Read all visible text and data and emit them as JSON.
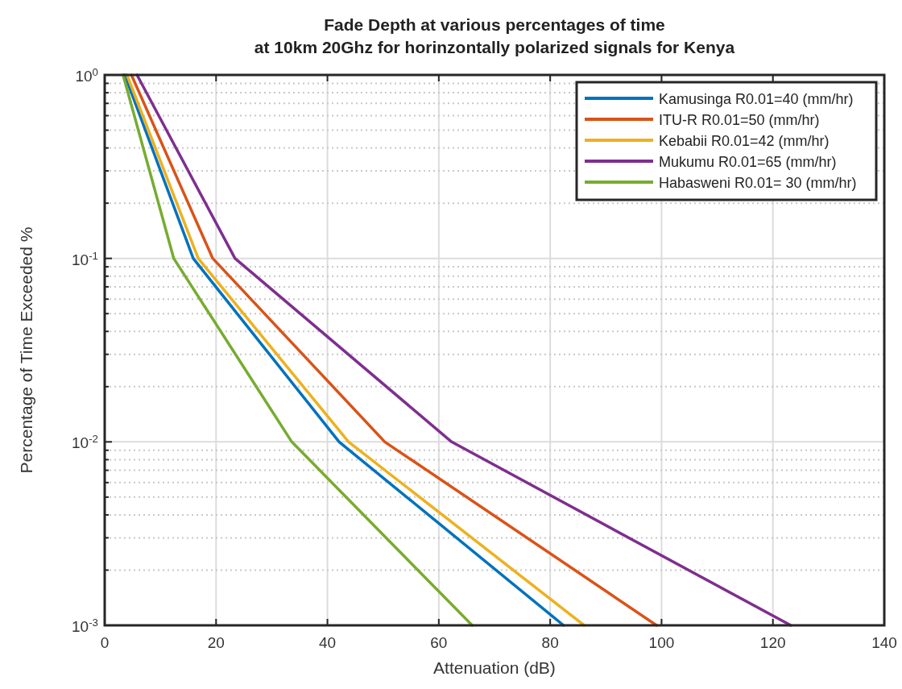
{
  "chart_data": {
    "type": "line",
    "title": "Fade Depth at various percentages of time\nat 10km 20Ghz for horinzontally polarized signals for Kenya",
    "xlabel": "Attenuation (dB)",
    "ylabel": "Percentage of Time Exceeded %",
    "log": "y",
    "xlim": [
      0,
      140
    ],
    "xticks": [
      0,
      20,
      40,
      60,
      80,
      100,
      120,
      140
    ],
    "ylim": [
      0.001,
      1
    ],
    "yticks": [
      {
        "value": 0.001,
        "label": "10$^{-3}$"
      },
      {
        "value": 0.01,
        "label": "10$^{-2}$"
      },
      {
        "value": 0.1,
        "label": "10$^{-1}$"
      },
      {
        "value": 1,
        "label": "10$^{0}$"
      }
    ],
    "grid": true,
    "legend": "top right",
    "line_style": "solid",
    "series": [
      {
        "name": "Kamusinga R0.01=40 (mm/hr)",
        "color": "#0072bd",
        "x": [
          3.6,
          15.9,
          42.1,
          82.4
        ],
        "values": [
          1,
          0.1,
          0.01,
          0.001
        ]
      },
      {
        "name": "ITU-R R0.01=50 (mm/hr)",
        "color": "#d95319",
        "x": [
          4.8,
          19.4,
          50.3,
          99.1
        ],
        "values": [
          1,
          0.1,
          0.01,
          0.001
        ]
      },
      {
        "name": "Kebabii R0.01=42 (mm/hr)",
        "color": "#edb120",
        "x": [
          4,
          16.8,
          43.8,
          86.1
        ],
        "values": [
          1,
          0.1,
          0.01,
          0.001
        ]
      },
      {
        "name": "Mukumu R0.01=65 (mm/hr)",
        "color": "#7e2f8e",
        "x": [
          5.8,
          23.4,
          62.3,
          123.2
        ],
        "values": [
          1,
          0.1,
          0.01,
          0.001
        ]
      },
      {
        "name": "Habasweni R0.01= 30 (mm/hr)",
        "color": "#77ac30",
        "x": [
          3.3,
          12.4,
          33.6,
          66
        ],
        "values": [
          1,
          0.1,
          0.01,
          0.001
        ]
      }
    ]
  }
}
